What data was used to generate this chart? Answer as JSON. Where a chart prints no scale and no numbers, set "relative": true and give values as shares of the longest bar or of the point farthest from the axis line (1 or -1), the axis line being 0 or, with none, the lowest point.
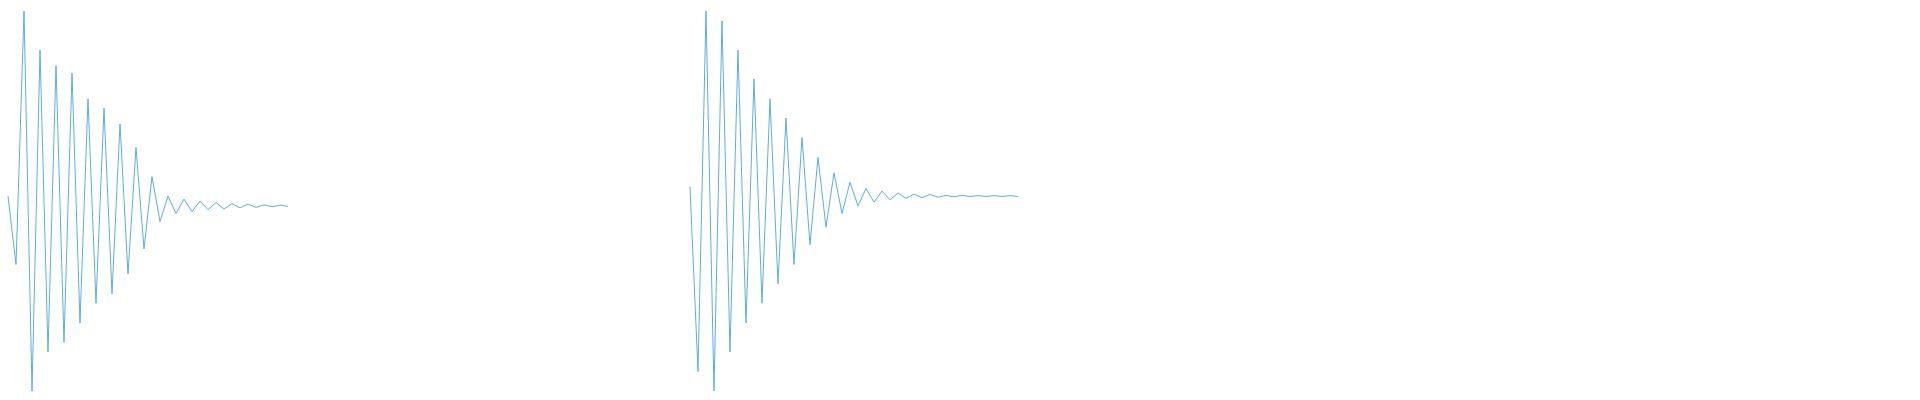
{
  "chart_data": [
    {
      "type": "line",
      "relative": true,
      "line_style": "solid",
      "categories": [
        null,
        null,
        null,
        null,
        null,
        null,
        null,
        null,
        null,
        null,
        null,
        null,
        null,
        null,
        null,
        null,
        null,
        null,
        null,
        null,
        null,
        null,
        null,
        null,
        null,
        null,
        null,
        null,
        null,
        null,
        null,
        null,
        null,
        null,
        null,
        null
      ],
      "series": [
        {
          "color": "#5dade2",
          "values": [
            0.513,
            0.333,
            1,
            0,
            0.897,
            0.103,
            0.856,
            0.128,
            0.836,
            0.179,
            0.769,
            0.231,
            0.744,
            0.256,
            0.703,
            0.308,
            0.641,
            0.374,
            0.564,
            0.446,
            0.513,
            0.467,
            0.505,
            0.472,
            0.5,
            0.477,
            0.496,
            0.479,
            0.493,
            0.482,
            0.492,
            0.483,
            0.49,
            0.485,
            0.489,
            0.486
          ]
        }
      ]
    },
    {
      "type": "line",
      "relative": true,
      "line_style": "solid",
      "categories": [
        null,
        null,
        null,
        null,
        null,
        null,
        null,
        null,
        null,
        null,
        null,
        null,
        null,
        null,
        null,
        null,
        null,
        null,
        null,
        null,
        null,
        null,
        null,
        null,
        null,
        null,
        null,
        null,
        null,
        null,
        null,
        null,
        null,
        null,
        null,
        null,
        null,
        null,
        null,
        null,
        null,
        null
      ],
      "series": [
        {
          "color": "#5dade2",
          "values": [
            0.538,
            0.051,
            1,
            0,
            0.974,
            0.103,
            0.897,
            0.179,
            0.821,
            0.231,
            0.769,
            0.282,
            0.718,
            0.333,
            0.667,
            0.385,
            0.615,
            0.431,
            0.574,
            0.467,
            0.549,
            0.487,
            0.533,
            0.497,
            0.526,
            0.503,
            0.521,
            0.507,
            0.518,
            0.509,
            0.517,
            0.51,
            0.515,
            0.511,
            0.515,
            0.512,
            0.514,
            0.512,
            0.514,
            0.512,
            0.514,
            0.512
          ]
        }
      ]
    }
  ]
}
